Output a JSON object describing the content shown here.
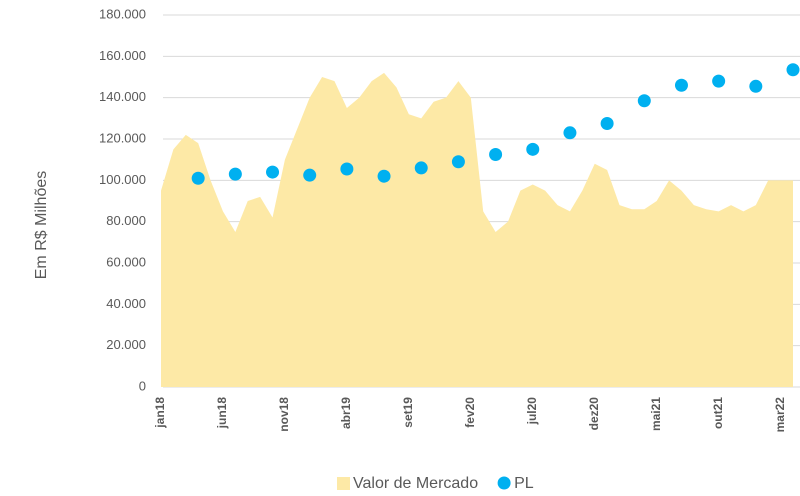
{
  "chart_data": {
    "type": "combo",
    "y_label": "Em R$ Milhões",
    "categories": [
      "jan18",
      null,
      null,
      null,
      null,
      "jun18",
      null,
      null,
      null,
      null,
      "nov18",
      null,
      null,
      null,
      null,
      "abr19",
      null,
      null,
      null,
      null,
      "set19",
      null,
      null,
      null,
      null,
      "fev20",
      null,
      null,
      null,
      null,
      "jul20",
      null,
      null,
      null,
      null,
      "dez20",
      null,
      null,
      null,
      null,
      "mai21",
      null,
      null,
      null,
      null,
      "out21",
      null,
      null,
      null,
      null,
      "mar22",
      null
    ],
    "series": [
      {
        "name": "Valor de Mercado",
        "kind": "area",
        "color": "#fde9a6",
        "values": [
          95000,
          115000,
          122000,
          118000,
          100000,
          85000,
          75000,
          90000,
          92000,
          82000,
          110000,
          125000,
          140000,
          150000,
          148000,
          135000,
          140000,
          148000,
          152000,
          145000,
          132000,
          130000,
          138000,
          140000,
          148000,
          140000,
          85000,
          75000,
          80000,
          95000,
          98000,
          95000,
          88000,
          85000,
          95000,
          108000,
          105000,
          88000,
          86000,
          86000,
          90000,
          100000,
          95000,
          88000,
          86000,
          85000,
          88000,
          85000,
          88000,
          100000,
          100000,
          100000
        ]
      },
      {
        "name": "PL",
        "kind": "scatter",
        "color": "#00b0f0",
        "values": [
          null,
          null,
          null,
          101000,
          null,
          null,
          103000,
          null,
          null,
          104000,
          null,
          null,
          102500,
          null,
          null,
          105500,
          null,
          null,
          102000,
          null,
          null,
          106000,
          null,
          null,
          109000,
          null,
          null,
          112500,
          null,
          null,
          115000,
          null,
          null,
          123000,
          null,
          null,
          127500,
          null,
          null,
          138500,
          null,
          null,
          146000,
          null,
          null,
          148000,
          null,
          null,
          145500,
          null,
          null,
          153500
        ]
      }
    ],
    "ylim": [
      0,
      180000
    ],
    "yticks": [
      0,
      {
        "value": 20000,
        "label": "20.000"
      },
      {
        "value": 40000,
        "label": "40.000"
      },
      {
        "value": 60000,
        "label": "60.000"
      },
      {
        "value": 80000,
        "label": "80.000"
      },
      {
        "value": 100000,
        "label": "100.000"
      },
      {
        "value": 120000,
        "label": "120.000"
      },
      {
        "value": 140000,
        "label": "140.000"
      },
      {
        "value": 160000,
        "label": "160.000"
      },
      {
        "value": 180000,
        "label": "180.000"
      }
    ],
    "grid": true,
    "legend": "bottom"
  }
}
